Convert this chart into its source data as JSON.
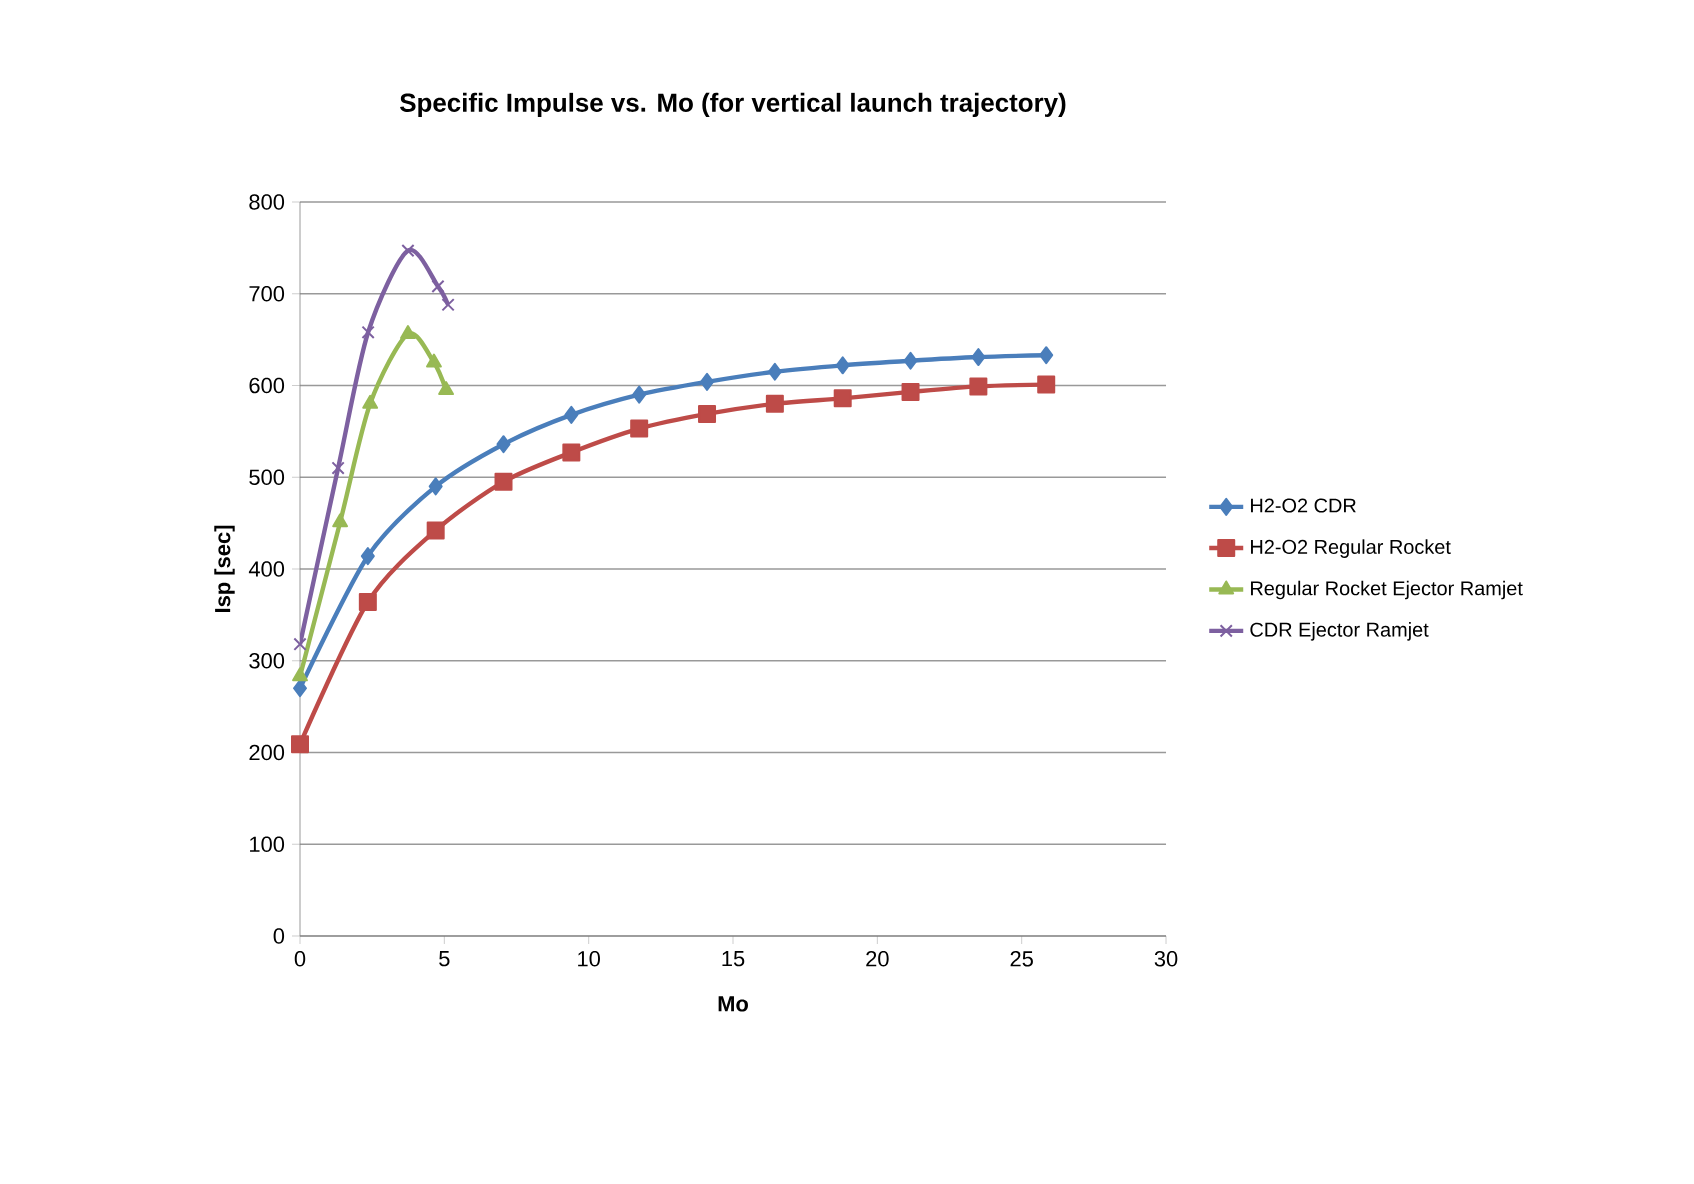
{
  "chart_data": {
    "type": "line",
    "title": "Specific Impulse vs. Mo (for vertical launch trajectory)",
    "xlabel": "Mo",
    "ylabel": "Isp [sec]",
    "xlim": [
      0,
      30
    ],
    "xticks": [
      0,
      5,
      10,
      15,
      20,
      25,
      30
    ],
    "ylim": [
      0,
      800
    ],
    "yticks": [
      0,
      100,
      200,
      300,
      400,
      500,
      600,
      700,
      800
    ],
    "grid": "y",
    "legend": "right",
    "line_style": "solid",
    "series": [
      {
        "name": "H2-O2 CDR",
        "color": "#4a7ebb",
        "marker": "diamond",
        "x": [
          0,
          2.35,
          4.7,
          7.05,
          9.4,
          11.75,
          14.1,
          16.45,
          18.8,
          21.15,
          23.5,
          25.85
        ],
        "values": [
          270,
          414,
          490,
          536,
          568,
          590,
          604,
          615,
          622,
          627,
          631,
          633
        ]
      },
      {
        "name": "H2-O2 Regular Rocket",
        "color": "#be4b48",
        "marker": "square",
        "x": [
          0,
          2.35,
          4.7,
          7.05,
          9.4,
          11.75,
          14.1,
          16.45,
          18.8,
          21.15,
          23.5,
          25.85
        ],
        "values": [
          209,
          364,
          442,
          495,
          527,
          553,
          569,
          580,
          586,
          593,
          599,
          601
        ]
      },
      {
        "name": "Regular Rocket Ejector Ramjet",
        "color": "#98b954",
        "marker": "triangle",
        "x": [
          0,
          1.39,
          2.43,
          3.74,
          4.64,
          5.06
        ],
        "values": [
          283,
          451,
          580,
          656,
          625,
          595
        ]
      },
      {
        "name": "CDR Ejector Ramjet",
        "color": "#7d60a0",
        "marker": "cross",
        "x": [
          0,
          1.32,
          2.36,
          3.74,
          4.78,
          5.13
        ],
        "values": [
          318,
          510,
          658,
          747,
          708,
          688
        ]
      }
    ]
  }
}
